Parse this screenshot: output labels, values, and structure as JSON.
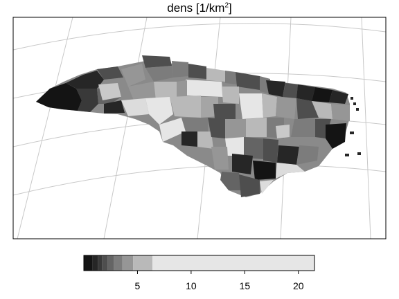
{
  "title": {
    "text": "dens ",
    "open_bracket": "[",
    "unit_main": "1/km",
    "unit_exp": "2",
    "close_bracket": "]"
  },
  "map": {
    "region": "North Carolina counties",
    "fill_palette": "grayscale",
    "graticule": "on",
    "graticule_color": "#c8c8c8",
    "frame_color": "#000000"
  },
  "legend": {
    "type": "colorbar",
    "range": [
      0,
      21.5
    ],
    "ticks": [
      "5",
      "10",
      "15",
      "20"
    ],
    "tick_values": [
      5,
      10,
      15,
      20
    ],
    "bins": [
      {
        "from": 0.0,
        "to": 0.8,
        "color": "#141414"
      },
      {
        "from": 0.8,
        "to": 1.3,
        "color": "#262626"
      },
      {
        "from": 1.3,
        "to": 1.7,
        "color": "#393939"
      },
      {
        "from": 1.7,
        "to": 2.2,
        "color": "#4e4e4e"
      },
      {
        "from": 2.2,
        "to": 2.8,
        "color": "#646464"
      },
      {
        "from": 2.8,
        "to": 3.6,
        "color": "#7c7c7c"
      },
      {
        "from": 3.6,
        "to": 4.6,
        "color": "#969696"
      },
      {
        "from": 4.6,
        "to": 6.4,
        "color": "#b9b9b9"
      },
      {
        "from": 6.4,
        "to": 21.5,
        "color": "#e6e6e6"
      }
    ]
  }
}
